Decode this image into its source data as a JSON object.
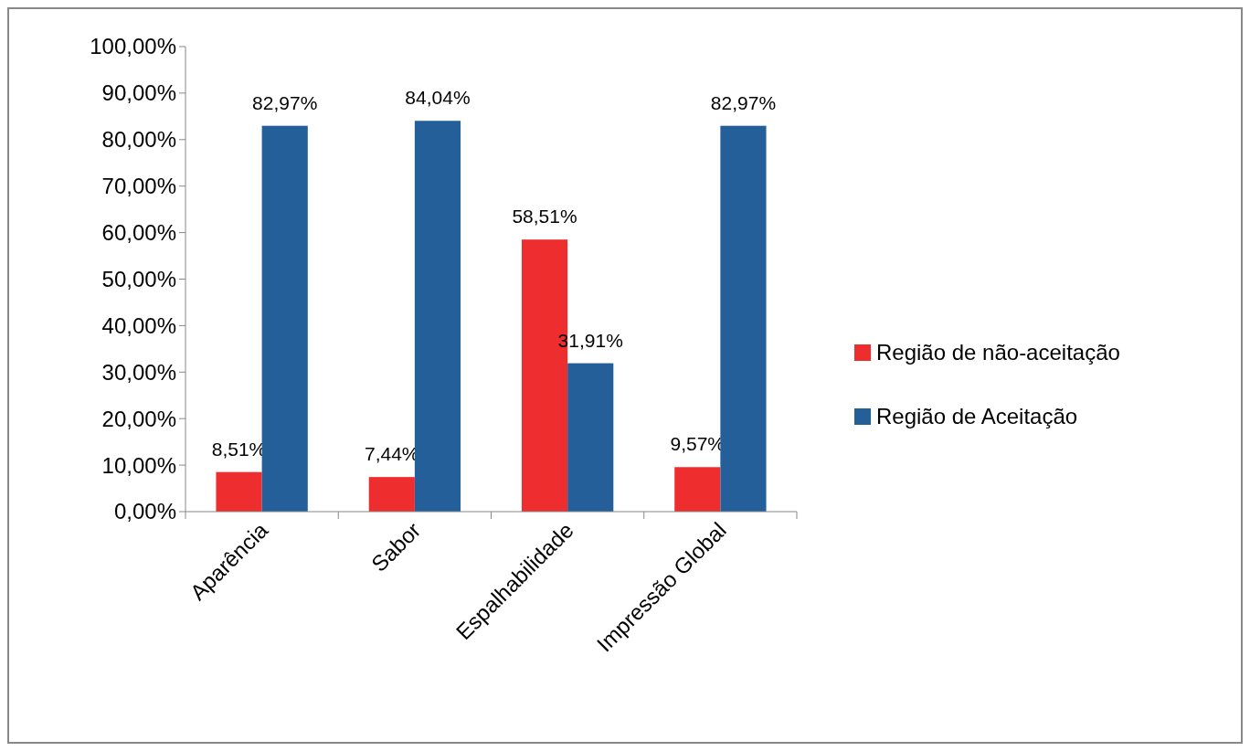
{
  "chart_data": {
    "type": "bar",
    "categories": [
      "Aparência",
      "Sabor",
      "Espalhabilidade",
      "Impressão Global"
    ],
    "series": [
      {
        "name": "Região de não-aceitação",
        "color": "#ee2d2f",
        "values": [
          8.51,
          7.44,
          58.51,
          9.57
        ],
        "value_labels": [
          "8,51%",
          "7,44%",
          "58,51%",
          "9,57%"
        ]
      },
      {
        "name": "Região de Aceitação",
        "color": "#255f99",
        "values": [
          82.97,
          84.04,
          31.91,
          82.97
        ],
        "value_labels": [
          "82,97%",
          "84,04%",
          "31,91%",
          "82,97%"
        ]
      }
    ],
    "ylim": [
      0,
      100
    ],
    "yticks": [
      {
        "value": 0,
        "label": "0,00%"
      },
      {
        "value": 10,
        "label": "10,00%"
      },
      {
        "value": 20,
        "label": "20,00%"
      },
      {
        "value": 30,
        "label": "30,00%"
      },
      {
        "value": 40,
        "label": "40,00%"
      },
      {
        "value": 50,
        "label": "50,00%"
      },
      {
        "value": 60,
        "label": "60,00%"
      },
      {
        "value": 70,
        "label": "70,00%"
      },
      {
        "value": 80,
        "label": "80,00%"
      },
      {
        "value": 90,
        "label": "90,00%"
      },
      {
        "value": 100,
        "label": "100,00%"
      }
    ],
    "legend": "right",
    "grid": false
  }
}
